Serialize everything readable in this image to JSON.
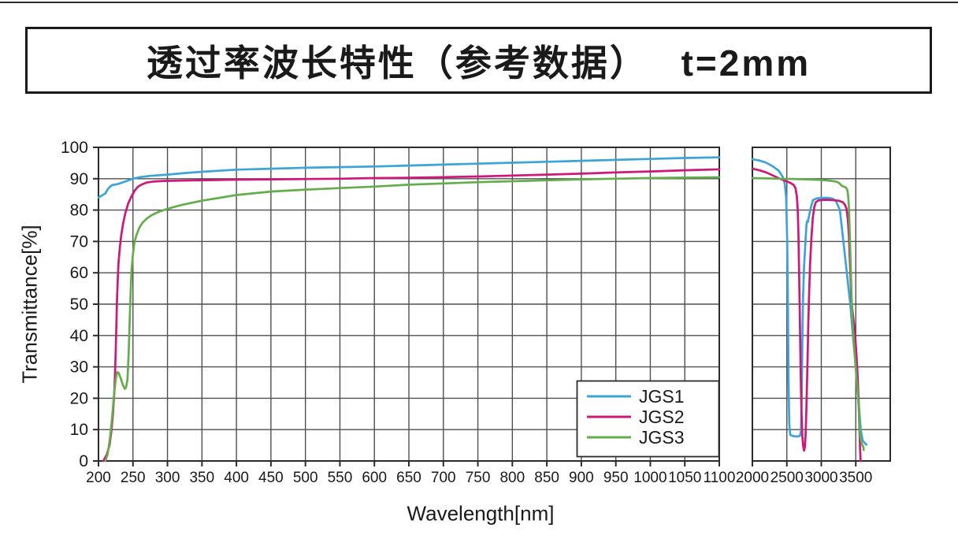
{
  "window": {
    "title_text": "透过率波长特性（参考数据）　 t=2mm"
  },
  "chart_data": {
    "type": "line",
    "title": "透过率波长特性（参考数据） t=2mm",
    "subtitle_thickness": "t=2mm",
    "xlabel": "Wavelength[nm]",
    "ylabel": "Transmittance[%]",
    "ylim": [
      0,
      100
    ],
    "y_ticks": [
      0,
      10,
      20,
      30,
      40,
      50,
      60,
      70,
      80,
      90,
      100
    ],
    "grid": true,
    "x_axis_break": true,
    "panels": [
      {
        "xlim": [
          200,
          1100
        ],
        "grid_step": 50,
        "x_ticks": [
          200,
          250,
          300,
          350,
          400,
          450,
          500,
          550,
          600,
          650,
          700,
          750,
          800,
          850,
          900,
          950,
          1000,
          1050,
          1100
        ]
      },
      {
        "xlim": [
          2000,
          4000
        ],
        "grid_step": 500,
        "x_ticks": [
          2000,
          2500,
          3000,
          3500
        ]
      }
    ],
    "legend": {
      "position": "lower-right",
      "entries": [
        "JGS1",
        "JGS2",
        "JGS3"
      ]
    },
    "colors": {
      "grid": "#4f4f4f",
      "frame": "#2b2b2b",
      "jgs1": "#3BA4D8",
      "jgs2": "#CE1779",
      "jgs3": "#63AD4A"
    },
    "series": [
      {
        "name": "JGS1",
        "color": "#3BA4D8",
        "segments": [
          [
            [
              200,
              84
            ],
            [
              206,
              84.8
            ],
            [
              210,
              85.3
            ],
            [
              213,
              86.5
            ],
            [
              216,
              87.3
            ],
            [
              220,
              88
            ],
            [
              226,
              88.2
            ],
            [
              232,
              88.6
            ],
            [
              240,
              89.2
            ],
            [
              250,
              90
            ],
            [
              260,
              90.5
            ],
            [
              275,
              90.9
            ],
            [
              300,
              91.3
            ],
            [
              325,
              91.8
            ],
            [
              350,
              92.2
            ],
            [
              400,
              92.9
            ],
            [
              450,
              93.2
            ],
            [
              500,
              93.5
            ],
            [
              550,
              93.7
            ],
            [
              600,
              93.9
            ],
            [
              650,
              94.2
            ],
            [
              700,
              94.5
            ],
            [
              750,
              94.8
            ],
            [
              800,
              95.1
            ],
            [
              850,
              95.4
            ],
            [
              900,
              95.7
            ],
            [
              950,
              96
            ],
            [
              1000,
              96.3
            ],
            [
              1050,
              96.6
            ],
            [
              1100,
              96.8
            ]
          ],
          [
            [
              2000,
              96.2
            ],
            [
              2100,
              95.8
            ],
            [
              2200,
              95.1
            ],
            [
              2300,
              93.9
            ],
            [
              2380,
              92.6
            ],
            [
              2440,
              90.6
            ],
            [
              2470,
              88.5
            ],
            [
              2490,
              84
            ],
            [
              2505,
              70
            ],
            [
              2515,
              50
            ],
            [
              2525,
              25
            ],
            [
              2535,
              12
            ],
            [
              2550,
              8.3
            ],
            [
              2600,
              7.9
            ],
            [
              2650,
              7.8
            ],
            [
              2690,
              8
            ],
            [
              2705,
              9.5
            ],
            [
              2715,
              20
            ],
            [
              2725,
              38
            ],
            [
              2735,
              52
            ],
            [
              2750,
              62
            ],
            [
              2770,
              70
            ],
            [
              2785,
              75.5
            ],
            [
              2795,
              76.5
            ],
            [
              2805,
              76.2
            ],
            [
              2825,
              78.5
            ],
            [
              2850,
              81
            ],
            [
              2880,
              83.2
            ],
            [
              2930,
              83.7
            ],
            [
              3000,
              83.9
            ],
            [
              3100,
              83.9
            ],
            [
              3170,
              83.6
            ],
            [
              3215,
              82.8
            ],
            [
              3240,
              81.5
            ],
            [
              3270,
              80
            ],
            [
              3320,
              70
            ],
            [
              3370,
              60
            ],
            [
              3420,
              50
            ],
            [
              3458,
              40
            ],
            [
              3500,
              30
            ],
            [
              3537,
              20
            ],
            [
              3572,
              10
            ],
            [
              3600,
              6.5
            ],
            [
              3640,
              5.5
            ],
            [
              3655,
              5.2
            ]
          ]
        ]
      },
      {
        "name": "JGS2",
        "color": "#CE1779",
        "segments": [
          [
            [
              207,
              0
            ],
            [
              212,
              2
            ],
            [
              216,
              5
            ],
            [
              219,
              10
            ],
            [
              221,
              15
            ],
            [
              223,
              22
            ],
            [
              224,
              28
            ],
            [
              225,
              35
            ],
            [
              226,
              44
            ],
            [
              227,
              52
            ],
            [
              228,
              58
            ],
            [
              229,
              63
            ],
            [
              231,
              68
            ],
            [
              233,
              72
            ],
            [
              236,
              76
            ],
            [
              239,
              79
            ],
            [
              243,
              82
            ],
            [
              247,
              84
            ],
            [
              252,
              86
            ],
            [
              257,
              87.4
            ],
            [
              263,
              88.2
            ],
            [
              270,
              88.8
            ],
            [
              280,
              89.1
            ],
            [
              295,
              89.3
            ],
            [
              320,
              89.4
            ],
            [
              350,
              89.5
            ],
            [
              400,
              89.7
            ],
            [
              450,
              89.8
            ],
            [
              500,
              89.9
            ],
            [
              550,
              90
            ],
            [
              600,
              90.2
            ],
            [
              650,
              90.3
            ],
            [
              700,
              90.5
            ],
            [
              750,
              90.7
            ],
            [
              800,
              91
            ],
            [
              850,
              91.3
            ],
            [
              900,
              91.6
            ],
            [
              950,
              92
            ],
            [
              1000,
              92.3
            ],
            [
              1050,
              92.7
            ],
            [
              1100,
              93
            ]
          ],
          [
            [
              2000,
              93.2
            ],
            [
              2100,
              92.7
            ],
            [
              2200,
              92
            ],
            [
              2300,
              91
            ],
            [
              2400,
              90
            ],
            [
              2480,
              89.3
            ],
            [
              2550,
              88.7
            ],
            [
              2600,
              88
            ],
            [
              2625,
              87
            ],
            [
              2645,
              84.5
            ],
            [
              2658,
              80
            ],
            [
              2668,
              72
            ],
            [
              2677,
              62
            ],
            [
              2686,
              50
            ],
            [
              2694,
              38
            ],
            [
              2702,
              27
            ],
            [
              2712,
              16
            ],
            [
              2725,
              8
            ],
            [
              2738,
              4.5
            ],
            [
              2750,
              3.3
            ],
            [
              2762,
              4.5
            ],
            [
              2772,
              8
            ],
            [
              2782,
              15
            ],
            [
              2792,
              24
            ],
            [
              2801,
              33
            ],
            [
              2812,
              44
            ],
            [
              2824,
              54
            ],
            [
              2838,
              63
            ],
            [
              2856,
              71
            ],
            [
              2876,
              77.5
            ],
            [
              2898,
              81
            ],
            [
              2920,
              82.5
            ],
            [
              2960,
              83.1
            ],
            [
              3050,
              83.3
            ],
            [
              3150,
              83.2
            ],
            [
              3250,
              83
            ],
            [
              3310,
              82.5
            ],
            [
              3340,
              81.8
            ],
            [
              3365,
              80.5
            ],
            [
              3385,
              77
            ],
            [
              3400,
              72
            ],
            [
              3413,
              65
            ],
            [
              3425,
              58
            ],
            [
              3438,
              51
            ],
            [
              3452,
              48
            ],
            [
              3470,
              44.5
            ],
            [
              3490,
              40
            ],
            [
              3510,
              34
            ],
            [
              3527,
              27
            ],
            [
              3542,
              19
            ],
            [
              3553,
              10
            ],
            [
              3562,
              4
            ],
            [
              3570,
              0
            ]
          ]
        ]
      },
      {
        "name": "JGS3",
        "color": "#63AD4A",
        "segments": [
          [
            [
              210,
              0
            ],
            [
              213,
              2
            ],
            [
              215,
              4.5
            ],
            [
              217,
              8
            ],
            [
              219,
              12
            ],
            [
              221,
              17
            ],
            [
              223,
              22
            ],
            [
              225,
              26
            ],
            [
              227,
              28.3
            ],
            [
              229,
              28.2
            ],
            [
              232,
              26.5
            ],
            [
              235,
              24.5
            ],
            [
              238,
              23
            ],
            [
              240,
              23.5
            ],
            [
              242,
              26
            ],
            [
              243,
              30
            ],
            [
              244,
              36
            ],
            [
              245,
              43
            ],
            [
              246,
              50
            ],
            [
              247,
              56
            ],
            [
              248,
              61
            ],
            [
              250,
              66
            ],
            [
              252,
              69.5
            ],
            [
              255,
              72
            ],
            [
              259,
              74.3
            ],
            [
              264,
              76
            ],
            [
              270,
              77.3
            ],
            [
              278,
              78.5
            ],
            [
              288,
              79.5
            ],
            [
              300,
              80.4
            ],
            [
              320,
              81.6
            ],
            [
              350,
              83
            ],
            [
              400,
              84.8
            ],
            [
              450,
              85.9
            ],
            [
              500,
              86.5
            ],
            [
              550,
              87
            ],
            [
              600,
              87.5
            ],
            [
              650,
              88.1
            ],
            [
              700,
              88.5
            ],
            [
              750,
              88.9
            ],
            [
              800,
              89.2
            ],
            [
              850,
              89.5
            ],
            [
              900,
              89.8
            ],
            [
              950,
              90
            ],
            [
              1000,
              90.2
            ],
            [
              1050,
              90.35
            ],
            [
              1100,
              90.45
            ]
          ],
          [
            [
              2000,
              90.2
            ],
            [
              2200,
              90.1
            ],
            [
              2400,
              90
            ],
            [
              2600,
              89.9
            ],
            [
              2800,
              89.8
            ],
            [
              3000,
              89.6
            ],
            [
              3100,
              89.4
            ],
            [
              3180,
              89.2
            ],
            [
              3230,
              89
            ],
            [
              3260,
              88.6
            ],
            [
              3285,
              88
            ],
            [
              3310,
              87.6
            ],
            [
              3335,
              87.4
            ],
            [
              3360,
              87.1
            ],
            [
              3378,
              86.3
            ],
            [
              3390,
              84.5
            ],
            [
              3400,
              81
            ],
            [
              3408,
              76
            ],
            [
              3416,
              70
            ],
            [
              3424,
              64
            ],
            [
              3432,
              58
            ],
            [
              3440,
              52
            ],
            [
              3450,
              45.5
            ],
            [
              3462,
              41
            ],
            [
              3478,
              36
            ],
            [
              3495,
              31
            ],
            [
              3512,
              26
            ],
            [
              3530,
              21
            ],
            [
              3545,
              16
            ],
            [
              3555,
              11
            ],
            [
              3565,
              8
            ],
            [
              3580,
              6
            ],
            [
              3595,
              5
            ],
            [
              3605,
              4.8
            ],
            [
              3612,
              4.2
            ],
            [
              3615,
              3.5
            ]
          ]
        ]
      }
    ]
  }
}
